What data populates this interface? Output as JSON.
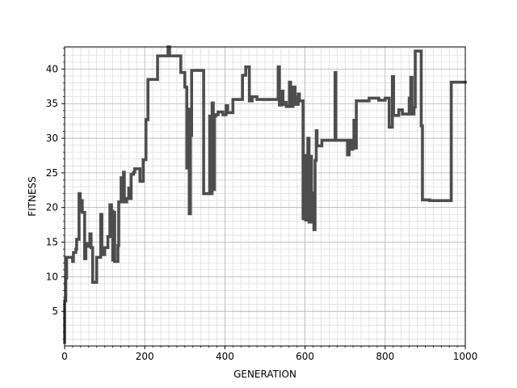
{
  "chart_data": {
    "type": "line",
    "title": "",
    "xlabel": "GENERATION",
    "ylabel": "FITNESS",
    "xlim": [
      0,
      1000
    ],
    "ylim": [
      0,
      43.2
    ],
    "xticks": [
      0,
      200,
      400,
      600,
      800,
      1000
    ],
    "yticks": [
      5,
      10,
      15,
      20,
      25,
      30,
      35,
      40
    ],
    "x_minor_step": 20,
    "y_minor_step": 1,
    "grid": true,
    "legend": "none",
    "line_color": "#4d4d4d",
    "step": true,
    "series": [
      {
        "points": [
          [
            0,
            0.5
          ],
          [
            0,
            6.5
          ],
          [
            3,
            6.5
          ],
          [
            3,
            9.8
          ],
          [
            5,
            9.8
          ],
          [
            5,
            12.8
          ],
          [
            20,
            12.8
          ],
          [
            20,
            12.2
          ],
          [
            22,
            12.2
          ],
          [
            22,
            13.5
          ],
          [
            28,
            13.5
          ],
          [
            28,
            14
          ],
          [
            30,
            14
          ],
          [
            30,
            15.4
          ],
          [
            36,
            15.4
          ],
          [
            36,
            22
          ],
          [
            39,
            22
          ],
          [
            39,
            19.5
          ],
          [
            42,
            19.5
          ],
          [
            42,
            21
          ],
          [
            44,
            21
          ],
          [
            44,
            19.3
          ],
          [
            50,
            19.3
          ],
          [
            50,
            12.6
          ],
          [
            53,
            12.6
          ],
          [
            53,
            14.8
          ],
          [
            60,
            14.8
          ],
          [
            60,
            14.4
          ],
          [
            63,
            14.4
          ],
          [
            63,
            16.2
          ],
          [
            66,
            16.2
          ],
          [
            66,
            14.2
          ],
          [
            70,
            14.2
          ],
          [
            70,
            9.2
          ],
          [
            80,
            9.2
          ],
          [
            80,
            12.8
          ],
          [
            90,
            12.8
          ],
          [
            90,
            19
          ],
          [
            93,
            19
          ],
          [
            93,
            13.2
          ],
          [
            100,
            13.2
          ],
          [
            100,
            14.2
          ],
          [
            108,
            14.2
          ],
          [
            108,
            15.8
          ],
          [
            113,
            15.8
          ],
          [
            113,
            20.4
          ],
          [
            117,
            20.4
          ],
          [
            117,
            19.5
          ],
          [
            120,
            19.5
          ],
          [
            120,
            12.4
          ],
          [
            122,
            12.4
          ],
          [
            122,
            19.3
          ],
          [
            125,
            19.3
          ],
          [
            125,
            12.2
          ],
          [
            133,
            12.2
          ],
          [
            133,
            14.5
          ],
          [
            135,
            14.5
          ],
          [
            135,
            20.8
          ],
          [
            141,
            20.8
          ],
          [
            141,
            24.3
          ],
          [
            144,
            24.3
          ],
          [
            144,
            20.9
          ],
          [
            147,
            20.9
          ],
          [
            147,
            25.1
          ],
          [
            149,
            25.1
          ],
          [
            149,
            20.8
          ],
          [
            155,
            20.8
          ],
          [
            155,
            21.3
          ],
          [
            160,
            21.3
          ],
          [
            160,
            22.8
          ],
          [
            163,
            22.8
          ],
          [
            163,
            21.3
          ],
          [
            166,
            21.3
          ],
          [
            166,
            24.8
          ],
          [
            172,
            24.8
          ],
          [
            172,
            25.1
          ],
          [
            175,
            25.1
          ],
          [
            175,
            25.6
          ],
          [
            188,
            25.6
          ],
          [
            188,
            23.8
          ],
          [
            196,
            23.8
          ],
          [
            196,
            26.9
          ],
          [
            203,
            26.9
          ],
          [
            203,
            32.7
          ],
          [
            208,
            32.7
          ],
          [
            208,
            38.5
          ],
          [
            232,
            38.5
          ],
          [
            232,
            41.9
          ],
          [
            258,
            41.9
          ],
          [
            258,
            43.2
          ],
          [
            262,
            43.2
          ],
          [
            262,
            41.9
          ],
          [
            290,
            41.9
          ],
          [
            290,
            39.5
          ],
          [
            300,
            39.5
          ],
          [
            300,
            37.4
          ],
          [
            305,
            37.4
          ],
          [
            305,
            25.7
          ],
          [
            308,
            25.7
          ],
          [
            308,
            34.2
          ],
          [
            311,
            34.2
          ],
          [
            311,
            19.1
          ],
          [
            314,
            19.1
          ],
          [
            314,
            30.4
          ],
          [
            317,
            30.4
          ],
          [
            317,
            39.8
          ],
          [
            347,
            39.8
          ],
          [
            347,
            22
          ],
          [
            362,
            22
          ],
          [
            362,
            33.2
          ],
          [
            365,
            33.2
          ],
          [
            365,
            22
          ],
          [
            368,
            22
          ],
          [
            368,
            35.1
          ],
          [
            371,
            35.1
          ],
          [
            371,
            22.6
          ],
          [
            374,
            22.6
          ],
          [
            374,
            33.2
          ],
          [
            377,
            33.2
          ],
          [
            377,
            33.4
          ],
          [
            383,
            33.4
          ],
          [
            383,
            33.8
          ],
          [
            395,
            33.8
          ],
          [
            395,
            33.4
          ],
          [
            403,
            33.4
          ],
          [
            403,
            34.7
          ],
          [
            407,
            34.7
          ],
          [
            407,
            33.7
          ],
          [
            420,
            33.7
          ],
          [
            420,
            35.6
          ],
          [
            444,
            35.6
          ],
          [
            444,
            39.1
          ],
          [
            452,
            39.1
          ],
          [
            452,
            40.3
          ],
          [
            461,
            40.3
          ],
          [
            461,
            35.4
          ],
          [
            468,
            35.4
          ],
          [
            468,
            36
          ],
          [
            480,
            36
          ],
          [
            480,
            35.6
          ],
          [
            533,
            35.6
          ],
          [
            533,
            40.3
          ],
          [
            536,
            40.3
          ],
          [
            536,
            34.8
          ],
          [
            542,
            34.8
          ],
          [
            542,
            36.8
          ],
          [
            545,
            36.8
          ],
          [
            545,
            34.9
          ],
          [
            548,
            34.9
          ],
          [
            548,
            35.2
          ],
          [
            553,
            35.2
          ],
          [
            553,
            34.6
          ],
          [
            561,
            34.6
          ],
          [
            561,
            38.1
          ],
          [
            564,
            38.1
          ],
          [
            564,
            34.6
          ],
          [
            570,
            34.6
          ],
          [
            570,
            37.4
          ],
          [
            575,
            37.4
          ],
          [
            575,
            35.9
          ],
          [
            577,
            35.9
          ],
          [
            577,
            34.9
          ],
          [
            583,
            34.9
          ],
          [
            583,
            36.4
          ],
          [
            586,
            36.4
          ],
          [
            586,
            35.4
          ],
          [
            595,
            35.4
          ],
          [
            595,
            18.4
          ],
          [
            598,
            18.4
          ],
          [
            598,
            27.5
          ],
          [
            601,
            27.5
          ],
          [
            601,
            18.2
          ],
          [
            604,
            18.2
          ],
          [
            604,
            18.8
          ],
          [
            607,
            18.8
          ],
          [
            607,
            30
          ],
          [
            610,
            30
          ],
          [
            610,
            17.9
          ],
          [
            613,
            17.9
          ],
          [
            613,
            27.4
          ],
          [
            616,
            27.4
          ],
          [
            616,
            17.9
          ],
          [
            619,
            17.9
          ],
          [
            619,
            22.1
          ],
          [
            622,
            22.1
          ],
          [
            622,
            16.8
          ],
          [
            625,
            16.8
          ],
          [
            625,
            26.8
          ],
          [
            628,
            26.8
          ],
          [
            628,
            31.1
          ],
          [
            630,
            31.1
          ],
          [
            630,
            28.9
          ],
          [
            642,
            28.9
          ],
          [
            642,
            29.7
          ],
          [
            675,
            29.7
          ],
          [
            675,
            39.5
          ],
          [
            677,
            39.5
          ],
          [
            677,
            29.7
          ],
          [
            706,
            29.7
          ],
          [
            706,
            27.6
          ],
          [
            710,
            27.6
          ],
          [
            710,
            29.7
          ],
          [
            716,
            29.7
          ],
          [
            716,
            28.4
          ],
          [
            719,
            28.4
          ],
          [
            719,
            29.7
          ],
          [
            722,
            29.7
          ],
          [
            722,
            32.6
          ],
          [
            726,
            32.6
          ],
          [
            726,
            28.6
          ],
          [
            728,
            28.6
          ],
          [
            728,
            35.4
          ],
          [
            760,
            35.4
          ],
          [
            760,
            35.8
          ],
          [
            784,
            35.8
          ],
          [
            784,
            35.5
          ],
          [
            800,
            35.5
          ],
          [
            800,
            35.8
          ],
          [
            810,
            35.8
          ],
          [
            810,
            31.6
          ],
          [
            818,
            31.6
          ],
          [
            818,
            38.9
          ],
          [
            821,
            38.9
          ],
          [
            821,
            33.3
          ],
          [
            834,
            33.3
          ],
          [
            834,
            34.1
          ],
          [
            843,
            34.1
          ],
          [
            843,
            33.5
          ],
          [
            860,
            33.5
          ],
          [
            860,
            35.8
          ],
          [
            864,
            35.8
          ],
          [
            864,
            38.8
          ],
          [
            867,
            38.8
          ],
          [
            867,
            33.5
          ],
          [
            872,
            33.5
          ],
          [
            872,
            34.5
          ],
          [
            875,
            34.5
          ],
          [
            875,
            42.6
          ],
          [
            890,
            42.6
          ],
          [
            890,
            31.8
          ],
          [
            893,
            31.8
          ],
          [
            893,
            21.1
          ],
          [
            911,
            21.1
          ],
          [
            911,
            21
          ],
          [
            965,
            21
          ],
          [
            965,
            38.1
          ],
          [
            1000,
            38.1
          ]
        ]
      }
    ]
  }
}
